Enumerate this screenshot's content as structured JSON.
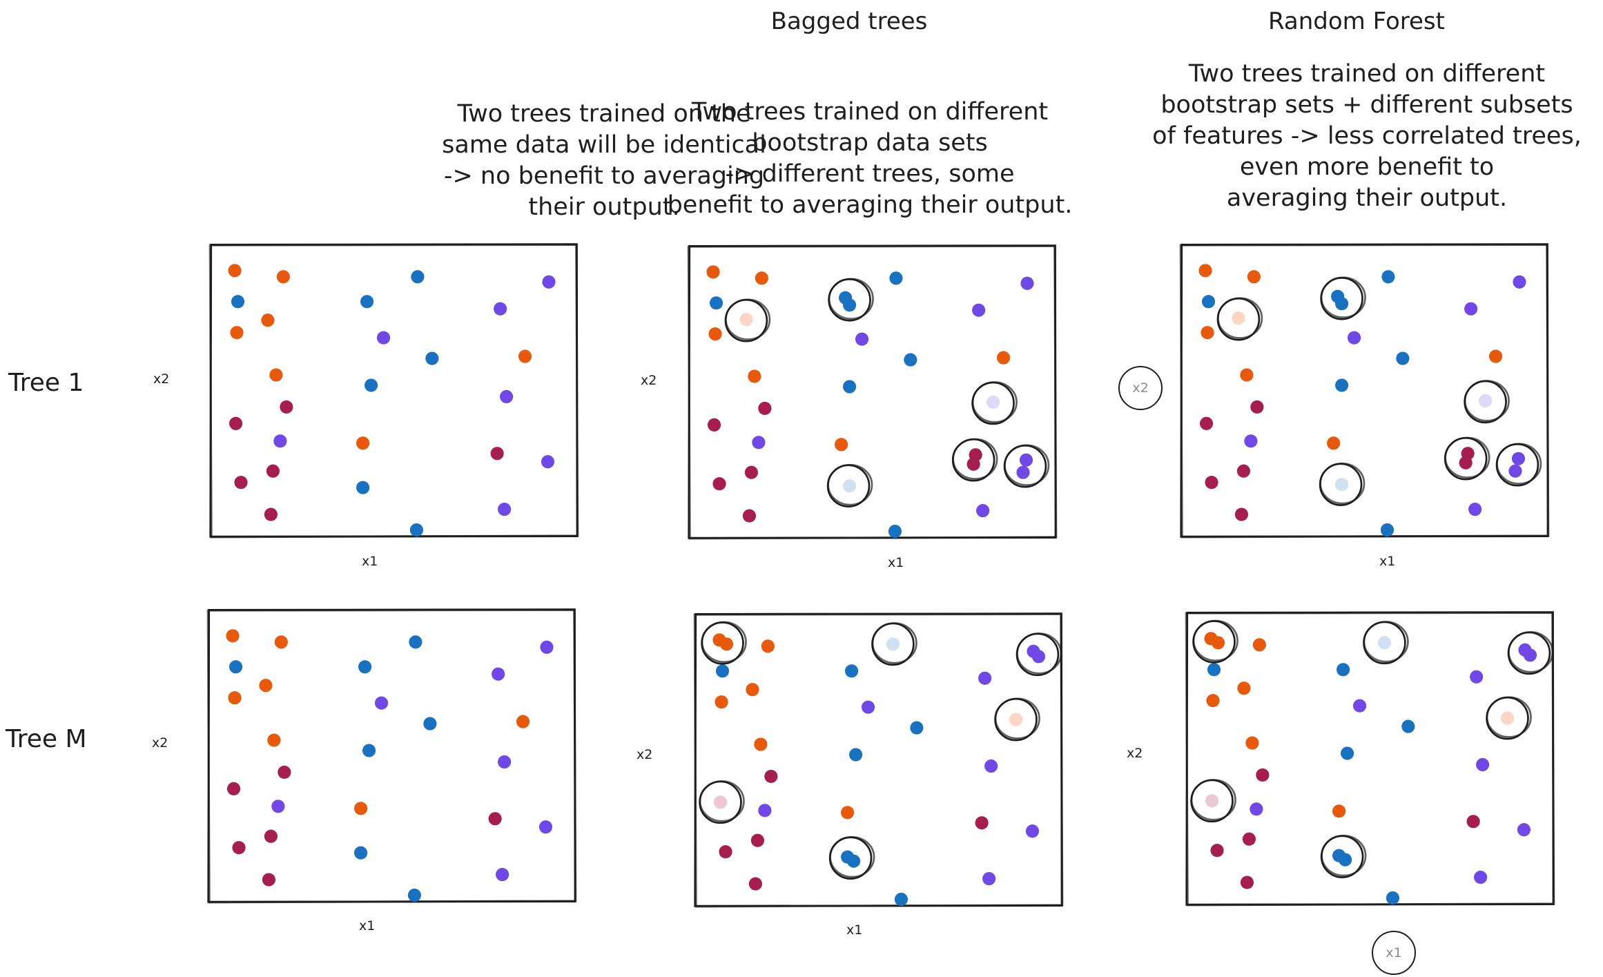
{
  "columns": [
    {
      "title": "",
      "description": [
        "Two trees trained on the",
        "same data will be identical",
        "-> no benefit to averaging",
        "their output."
      ]
    },
    {
      "title": "Bagged trees",
      "description": [
        "Two trees trained on different",
        "bootstrap data sets",
        "-> different trees, some",
        "benefit to averaging their output."
      ]
    },
    {
      "title": "Random Forest",
      "description": [
        "Two trees trained on different",
        "bootstrap sets + different subsets",
        "of features -> less correlated trees,",
        "even more benefit to",
        "averaging their output."
      ]
    }
  ],
  "rows": [
    "Tree 1",
    "Tree M"
  ],
  "axes": {
    "x": "x1",
    "y": "x2"
  },
  "colors": {
    "orange": "#e8590c",
    "blue": "#1971c2",
    "purple": "#7048e8",
    "crimson": "#a61e4d",
    "orange_light": "#fcd5c4",
    "blue_light": "#cfe0f0",
    "purple_light": "#e0d8f8",
    "crimson_light": "#ecc8d4",
    "ink": "#1e1e1e"
  },
  "icons": {
    "ring": "hand-drawn-circle",
    "axis_ring": "circled-axis-label"
  },
  "panels": [
    {
      "name": "tree1-original",
      "dots": [
        [
          "orange",
          24,
          26
        ],
        [
          "orange",
          71,
          32
        ],
        [
          "blue",
          201,
          32
        ],
        [
          "purple",
          328,
          37
        ],
        [
          "blue",
          27,
          56
        ],
        [
          "blue",
          152,
          56
        ],
        [
          "purple",
          281,
          63
        ],
        [
          "orange",
          56,
          74
        ],
        [
          "orange",
          26,
          86
        ],
        [
          "purple",
          168,
          91
        ],
        [
          "blue",
          215,
          111
        ],
        [
          "orange",
          305,
          109
        ],
        [
          "orange",
          64,
          127
        ],
        [
          "blue",
          156,
          137
        ],
        [
          "purple",
          287,
          148
        ],
        [
          "crimson",
          74,
          158
        ],
        [
          "crimson",
          25,
          174
        ],
        [
          "purple",
          68,
          191
        ],
        [
          "orange",
          148,
          193
        ],
        [
          "crimson",
          278,
          203
        ],
        [
          "purple",
          327,
          211
        ],
        [
          "crimson",
          30,
          231
        ],
        [
          "crimson",
          61,
          220
        ],
        [
          "blue",
          148,
          236
        ],
        [
          "purple",
          285,
          257
        ],
        [
          "crimson",
          59,
          262
        ],
        [
          "blue",
          200,
          277
        ]
      ],
      "rings": []
    },
    {
      "name": "tree1-bagged",
      "dots": [
        [
          "orange",
          24,
          26
        ],
        [
          "orange",
          71,
          32
        ],
        [
          "blue",
          27,
          56
        ],
        [
          "orange_light",
          56,
          72
        ],
        [
          "orange",
          26,
          86
        ],
        [
          "blue",
          152,
          51
        ],
        [
          "blue",
          156,
          58
        ],
        [
          "blue",
          201,
          32
        ],
        [
          "purple",
          328,
          37
        ],
        [
          "purple",
          281,
          63
        ],
        [
          "purple",
          168,
          91
        ],
        [
          "blue",
          215,
          111
        ],
        [
          "orange",
          305,
          109
        ],
        [
          "orange",
          64,
          127
        ],
        [
          "blue",
          156,
          137
        ],
        [
          "purple_light",
          295,
          152
        ],
        [
          "crimson",
          74,
          158
        ],
        [
          "crimson",
          25,
          174
        ],
        [
          "purple",
          68,
          191
        ],
        [
          "orange",
          148,
          193
        ],
        [
          "crimson",
          278,
          203
        ],
        [
          "crimson",
          276,
          212
        ],
        [
          "purple",
          327,
          208
        ],
        [
          "purple",
          324,
          220
        ],
        [
          "crimson",
          30,
          231
        ],
        [
          "crimson",
          61,
          220
        ],
        [
          "blue_light",
          156,
          233
        ],
        [
          "purple",
          285,
          257
        ],
        [
          "crimson",
          59,
          262
        ],
        [
          "blue",
          200,
          277
        ]
      ],
      "rings": [
        [
          56,
          73
        ],
        [
          156,
          53
        ],
        [
          295,
          153
        ],
        [
          276,
          208
        ],
        [
          326,
          214
        ],
        [
          155,
          233
        ]
      ]
    },
    {
      "name": "tree1-random-forest",
      "dots": [
        [
          "orange",
          24,
          26
        ],
        [
          "orange",
          71,
          32
        ],
        [
          "blue",
          27,
          56
        ],
        [
          "orange_light",
          56,
          72
        ],
        [
          "orange",
          26,
          86
        ],
        [
          "blue",
          152,
          51
        ],
        [
          "blue",
          156,
          58
        ],
        [
          "blue",
          201,
          32
        ],
        [
          "purple",
          328,
          37
        ],
        [
          "purple",
          281,
          63
        ],
        [
          "purple",
          168,
          91
        ],
        [
          "blue",
          215,
          111
        ],
        [
          "orange",
          305,
          109
        ],
        [
          "orange",
          64,
          127
        ],
        [
          "blue",
          156,
          137
        ],
        [
          "purple_light",
          295,
          152
        ],
        [
          "crimson",
          74,
          158
        ],
        [
          "crimson",
          25,
          174
        ],
        [
          "purple",
          68,
          191
        ],
        [
          "orange",
          148,
          193
        ],
        [
          "crimson",
          278,
          203
        ],
        [
          "crimson",
          276,
          212
        ],
        [
          "purple",
          327,
          208
        ],
        [
          "purple",
          324,
          220
        ],
        [
          "crimson",
          30,
          231
        ],
        [
          "crimson",
          61,
          220
        ],
        [
          "blue_light",
          156,
          233
        ],
        [
          "purple",
          285,
          257
        ],
        [
          "crimson",
          59,
          262
        ],
        [
          "blue",
          200,
          277
        ]
      ],
      "rings": [
        [
          56,
          73
        ],
        [
          156,
          53
        ],
        [
          295,
          153
        ],
        [
          276,
          208
        ],
        [
          326,
          214
        ],
        [
          155,
          233
        ]
      ]
    },
    {
      "name": "treeM-original",
      "dots": [
        [
          "orange",
          24,
          26
        ],
        [
          "orange",
          71,
          32
        ],
        [
          "blue",
          201,
          32
        ],
        [
          "purple",
          328,
          37
        ],
        [
          "blue",
          27,
          56
        ],
        [
          "blue",
          152,
          56
        ],
        [
          "purple",
          281,
          63
        ],
        [
          "orange",
          56,
          74
        ],
        [
          "orange",
          26,
          86
        ],
        [
          "purple",
          168,
          91
        ],
        [
          "blue",
          215,
          111
        ],
        [
          "orange",
          305,
          109
        ],
        [
          "orange",
          64,
          127
        ],
        [
          "blue",
          156,
          137
        ],
        [
          "purple",
          287,
          148
        ],
        [
          "crimson",
          74,
          158
        ],
        [
          "crimson",
          25,
          174
        ],
        [
          "purple",
          68,
          191
        ],
        [
          "orange",
          148,
          193
        ],
        [
          "crimson",
          278,
          203
        ],
        [
          "purple",
          327,
          211
        ],
        [
          "crimson",
          30,
          231
        ],
        [
          "crimson",
          61,
          220
        ],
        [
          "blue",
          148,
          236
        ],
        [
          "purple",
          285,
          257
        ],
        [
          "crimson",
          59,
          262
        ],
        [
          "blue",
          200,
          277
        ]
      ],
      "rings": []
    },
    {
      "name": "treeM-bagged",
      "dots": [
        [
          "orange",
          24,
          26
        ],
        [
          "orange",
          31,
          30
        ],
        [
          "orange",
          71,
          32
        ],
        [
          "blue_light",
          192,
          30
        ],
        [
          "purple",
          328,
          37
        ],
        [
          "purple",
          333,
          42
        ],
        [
          "blue",
          27,
          56
        ],
        [
          "blue",
          152,
          56
        ],
        [
          "purple",
          281,
          63
        ],
        [
          "orange",
          56,
          74
        ],
        [
          "orange",
          26,
          86
        ],
        [
          "purple",
          168,
          91
        ],
        [
          "orange_light",
          311,
          103
        ],
        [
          "blue",
          215,
          111
        ],
        [
          "orange",
          64,
          127
        ],
        [
          "blue",
          156,
          137
        ],
        [
          "purple",
          287,
          148
        ],
        [
          "crimson",
          74,
          158
        ],
        [
          "crimson_light",
          25,
          183
        ],
        [
          "purple",
          68,
          191
        ],
        [
          "orange",
          148,
          193
        ],
        [
          "crimson",
          278,
          203
        ],
        [
          "purple",
          327,
          211
        ],
        [
          "crimson",
          30,
          231
        ],
        [
          "crimson",
          61,
          220
        ],
        [
          "blue",
          148,
          236
        ],
        [
          "blue",
          154,
          240
        ],
        [
          "purple",
          285,
          257
        ],
        [
          "crimson",
          59,
          262
        ],
        [
          "blue",
          200,
          277
        ]
      ],
      "rings": [
        [
          27,
          29
        ],
        [
          192,
          30
        ],
        [
          332,
          40
        ],
        [
          311,
          103
        ],
        [
          25,
          183
        ],
        [
          151,
          237
        ]
      ]
    },
    {
      "name": "treeM-random-forest",
      "dots": [
        [
          "orange",
          24,
          26
        ],
        [
          "orange",
          31,
          30
        ],
        [
          "orange",
          71,
          32
        ],
        [
          "blue_light",
          192,
          30
        ],
        [
          "purple",
          328,
          37
        ],
        [
          "purple",
          333,
          42
        ],
        [
          "blue",
          27,
          56
        ],
        [
          "blue",
          152,
          56
        ],
        [
          "purple",
          281,
          63
        ],
        [
          "orange",
          56,
          74
        ],
        [
          "orange",
          26,
          86
        ],
        [
          "purple",
          168,
          91
        ],
        [
          "orange_light",
          311,
          103
        ],
        [
          "blue",
          215,
          111
        ],
        [
          "orange",
          64,
          127
        ],
        [
          "blue",
          156,
          137
        ],
        [
          "purple",
          287,
          148
        ],
        [
          "crimson",
          74,
          158
        ],
        [
          "crimson_light",
          25,
          183
        ],
        [
          "purple",
          68,
          191
        ],
        [
          "orange",
          148,
          193
        ],
        [
          "crimson",
          278,
          203
        ],
        [
          "purple",
          327,
          211
        ],
        [
          "crimson",
          30,
          231
        ],
        [
          "crimson",
          61,
          220
        ],
        [
          "blue",
          148,
          236
        ],
        [
          "blue",
          154,
          240
        ],
        [
          "purple",
          285,
          257
        ],
        [
          "crimson",
          59,
          262
        ],
        [
          "blue",
          200,
          277
        ]
      ],
      "rings": [
        [
          27,
          29
        ],
        [
          192,
          30
        ],
        [
          332,
          40
        ],
        [
          311,
          103
        ],
        [
          25,
          183
        ],
        [
          151,
          237
        ]
      ]
    }
  ]
}
